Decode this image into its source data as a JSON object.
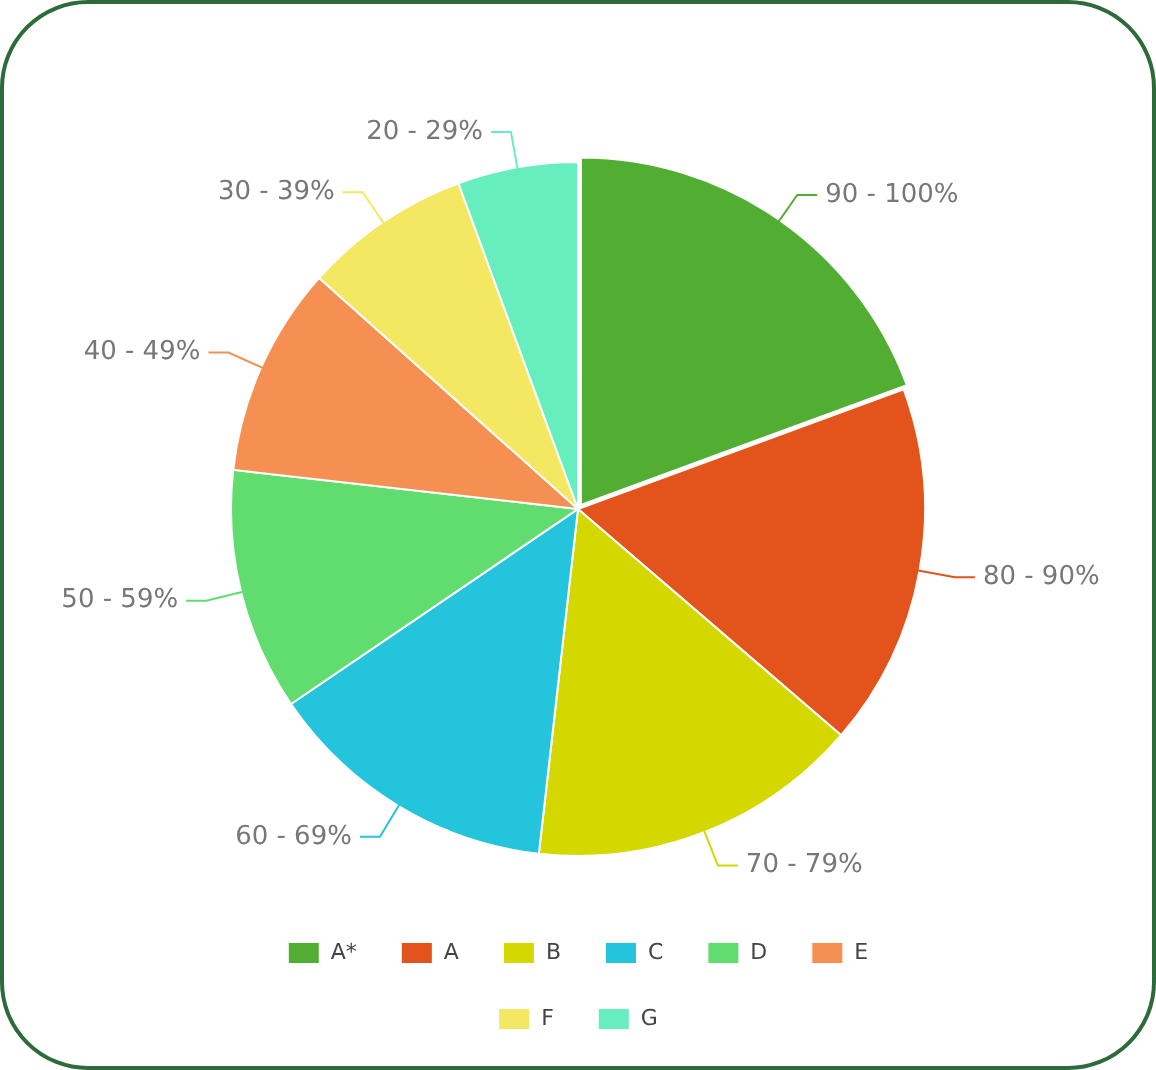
{
  "chart_data": {
    "type": "pie",
    "categories": [
      "A*",
      "A",
      "B",
      "C",
      "D",
      "E",
      "F",
      "G"
    ],
    "values": [
      19.4,
      16.9,
      15.5,
      13.7,
      11.3,
      9.8,
      7.8,
      5.6
    ],
    "colors": [
      "#52ae32",
      "#e3541c",
      "#d4d800",
      "#24c4dc",
      "#61dd6f",
      "#f59052",
      "#f4e862",
      "#66eebe"
    ],
    "annotations": [
      {
        "text": "90 - 100%",
        "x": "A*"
      },
      {
        "text": "80 - 90%",
        "x": "A"
      },
      {
        "text": "70 - 79%",
        "x": "B"
      },
      {
        "text": "60 - 69%",
        "x": "C"
      },
      {
        "text": "50 - 59%",
        "x": "D"
      },
      {
        "text": "40 - 49%",
        "x": "E"
      },
      {
        "text": "30 - 39%",
        "x": "F"
      },
      {
        "text": "20 - 29%",
        "x": "G"
      }
    ],
    "legend": "bottom"
  }
}
